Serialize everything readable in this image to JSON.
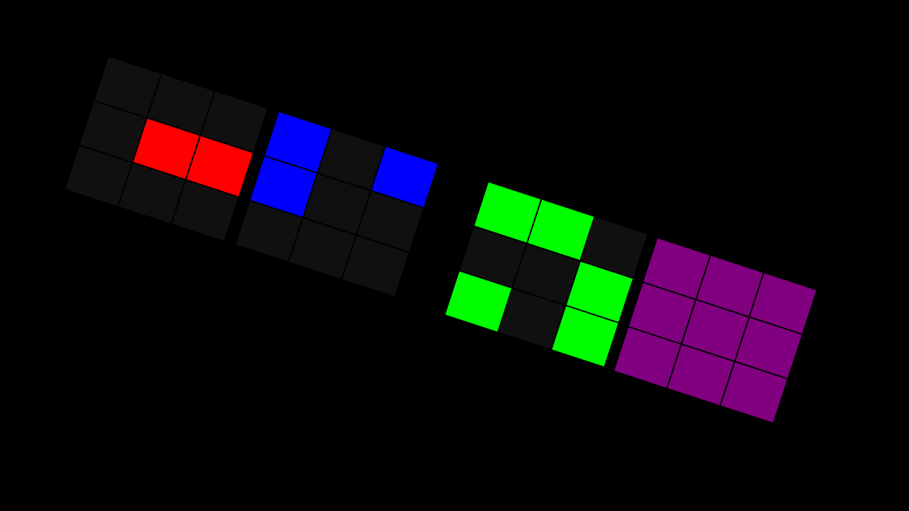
{
  "palette": {
    "empty": "#101010",
    "red": "#ff0000",
    "blue": "#0000ff",
    "green": "#00ff00",
    "purple": "#800080"
  },
  "grids": [
    {
      "cells": [
        [
          "empty",
          "empty",
          "empty"
        ],
        [
          "empty",
          "red",
          "red"
        ],
        [
          "empty",
          "empty",
          "empty"
        ]
      ]
    },
    {
      "cells": [
        [
          "blue",
          "empty",
          "blue"
        ],
        [
          "blue",
          "empty",
          "empty"
        ],
        [
          "empty",
          "empty",
          "empty"
        ]
      ]
    },
    {
      "cells": [
        [
          "green",
          "green",
          "empty"
        ],
        [
          "empty",
          "empty",
          "green"
        ],
        [
          "green",
          "empty",
          "green"
        ]
      ]
    },
    {
      "cells": [
        [
          "purple",
          "purple",
          "purple"
        ],
        [
          "purple",
          "purple",
          "purple"
        ],
        [
          "purple",
          "purple",
          "purple"
        ]
      ]
    }
  ]
}
